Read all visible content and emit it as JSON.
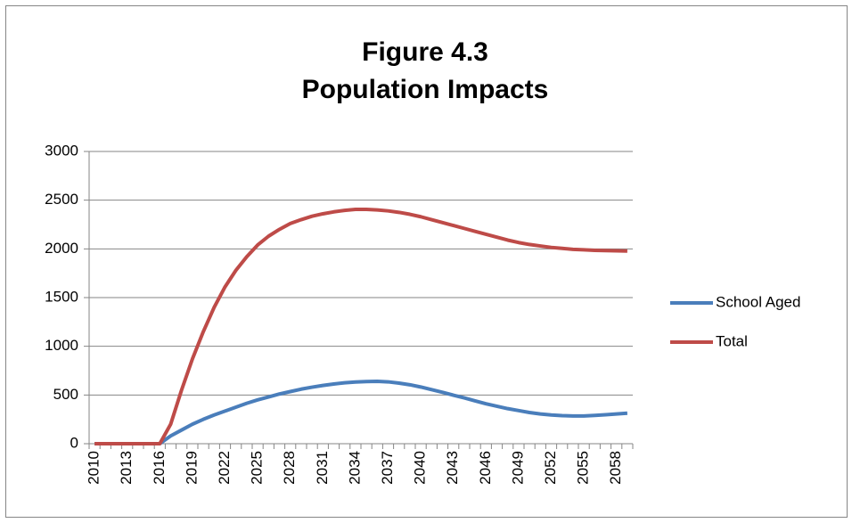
{
  "chart_data": {
    "type": "line",
    "title": [
      "Figure 4.3",
      "Population Impacts"
    ],
    "categories": [
      "2010",
      null,
      null,
      "2013",
      null,
      null,
      "2016",
      null,
      null,
      "2019",
      null,
      null,
      "2022",
      null,
      null,
      "2025",
      null,
      null,
      "2028",
      null,
      null,
      "2031",
      null,
      null,
      "2034",
      null,
      null,
      "2037",
      null,
      null,
      "2040",
      null,
      null,
      "2043",
      null,
      null,
      "2046",
      null,
      null,
      "2049",
      null,
      null,
      "2052",
      null,
      null,
      "2055",
      null,
      null,
      "2058",
      null
    ],
    "series": [
      {
        "name": "School Aged",
        "color": "#4a7ebb",
        "values": [
          0,
          0,
          0,
          0,
          0,
          0,
          0,
          80,
          140,
          200,
          250,
          295,
          335,
          375,
          415,
          450,
          480,
          510,
          535,
          560,
          580,
          598,
          613,
          625,
          633,
          638,
          640,
          635,
          622,
          605,
          582,
          555,
          528,
          498,
          470,
          440,
          410,
          385,
          360,
          340,
          320,
          305,
          295,
          288,
          285,
          285,
          290,
          297,
          305,
          313
        ]
      },
      {
        "name": "Total",
        "color": "#be4b48",
        "values": [
          0,
          0,
          0,
          0,
          0,
          0,
          0,
          200,
          550,
          870,
          1150,
          1400,
          1610,
          1780,
          1920,
          2040,
          2130,
          2200,
          2260,
          2300,
          2335,
          2360,
          2380,
          2395,
          2405,
          2405,
          2400,
          2390,
          2375,
          2355,
          2330,
          2300,
          2270,
          2240,
          2210,
          2180,
          2150,
          2120,
          2090,
          2065,
          2045,
          2030,
          2015,
          2005,
          1995,
          1990,
          1985,
          1982,
          1980,
          1978
        ]
      }
    ],
    "ylim": [
      0,
      3000
    ],
    "yticks": [
      0,
      500,
      1000,
      1500,
      2000,
      2500,
      3000
    ],
    "grid": true,
    "legend": "right"
  }
}
